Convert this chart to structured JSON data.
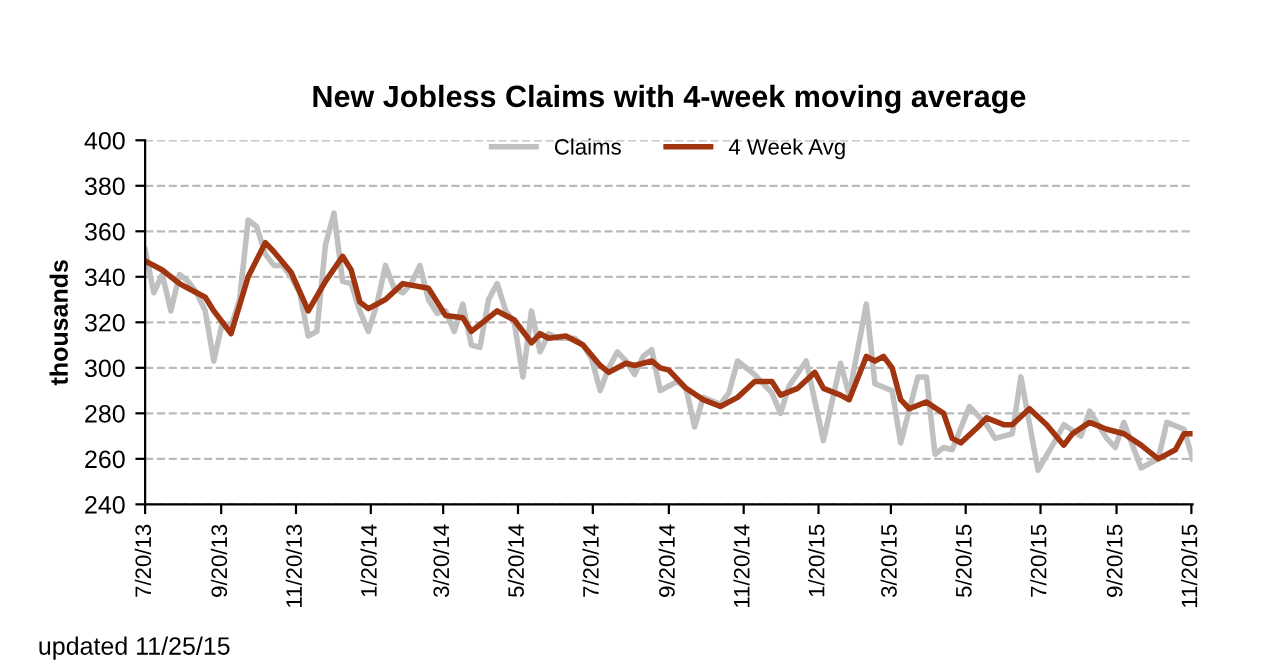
{
  "chart_data": {
    "type": "line",
    "title": "New Jobless Claims with 4-week moving average",
    "ylabel": "thousands",
    "annotations": [
      "updated 11/25/15"
    ],
    "series": [
      {
        "name": "Claims",
        "color": "#c0c0c0",
        "x": [
          "2013-07-20",
          "2013-07-27",
          "2013-08-03",
          "2013-08-10",
          "2013-08-17",
          "2013-08-24",
          "2013-08-31",
          "2013-09-07",
          "2013-09-14",
          "2013-09-21",
          "2013-09-28",
          "2013-10-05",
          "2013-10-12",
          "2013-10-19",
          "2013-10-26",
          "2013-11-02",
          "2013-11-09",
          "2013-11-16",
          "2013-11-23",
          "2013-11-30",
          "2013-12-07",
          "2013-12-14",
          "2013-12-21",
          "2013-12-28",
          "2014-01-04",
          "2014-01-11",
          "2014-01-18",
          "2014-01-25",
          "2014-02-01",
          "2014-02-08",
          "2014-02-15",
          "2014-02-22",
          "2014-03-01",
          "2014-03-08",
          "2014-03-15",
          "2014-03-22",
          "2014-03-29",
          "2014-04-05",
          "2014-04-12",
          "2014-04-19",
          "2014-04-26",
          "2014-05-03",
          "2014-05-10",
          "2014-05-17",
          "2014-05-24",
          "2014-05-31",
          "2014-06-07",
          "2014-06-14",
          "2014-06-21",
          "2014-06-28",
          "2014-07-05",
          "2014-07-12",
          "2014-07-19",
          "2014-07-26",
          "2014-08-02",
          "2014-08-09",
          "2014-08-16",
          "2014-08-23",
          "2014-08-30",
          "2014-09-06",
          "2014-09-13",
          "2014-09-27",
          "2014-10-04",
          "2014-10-11",
          "2014-10-18",
          "2014-11-01",
          "2014-11-08",
          "2014-11-15",
          "2014-11-29",
          "2014-12-13",
          "2014-12-20",
          "2014-12-27",
          "2015-01-10",
          "2015-01-24",
          "2015-02-07",
          "2015-02-14",
          "2015-02-28",
          "2015-03-07",
          "2015-03-21",
          "2015-03-28",
          "2015-04-11",
          "2015-04-18",
          "2015-04-25",
          "2015-05-02",
          "2015-05-09",
          "2015-05-23",
          "2015-06-06",
          "2015-06-13",
          "2015-06-27",
          "2015-07-04",
          "2015-07-18",
          "2015-08-01",
          "2015-08-08",
          "2015-08-22",
          "2015-08-29",
          "2015-09-12",
          "2015-09-19",
          "2015-09-26",
          "2015-10-10",
          "2015-10-24",
          "2015-10-31",
          "2015-11-14",
          "2015-11-21"
        ],
        "values": [
          352,
          333,
          341,
          325,
          341,
          338,
          333,
          325,
          303,
          320,
          318,
          330,
          365,
          362,
          350,
          345,
          345,
          340,
          333,
          314,
          316,
          354,
          368,
          338,
          337,
          325,
          316,
          328,
          345,
          335,
          333,
          337,
          345,
          330,
          324,
          325,
          316,
          328,
          310,
          309,
          330,
          337,
          325,
          320,
          296,
          325,
          307,
          315,
          313,
          313,
          313,
          310,
          304,
          290,
          300,
          307,
          303,
          297,
          305,
          308,
          290,
          294,
          291,
          274,
          287,
          284,
          289,
          303,
          297,
          289,
          280,
          292,
          303,
          268,
          302,
          288,
          328,
          293,
          290,
          267,
          296,
          296,
          262,
          265,
          264,
          283,
          275,
          269,
          271,
          296,
          255,
          268,
          275,
          270,
          281,
          269,
          265,
          276,
          256,
          260,
          276,
          273,
          260
        ]
      },
      {
        "name": "4 Week Avg",
        "color": "#a0350f",
        "x": [
          "2013-07-20",
          "2013-08-03",
          "2013-08-17",
          "2013-08-24",
          "2013-09-07",
          "2013-09-14",
          "2013-09-28",
          "2013-10-12",
          "2013-10-26",
          "2013-11-02",
          "2013-11-16",
          "2013-11-30",
          "2013-12-14",
          "2013-12-28",
          "2014-01-04",
          "2014-01-11",
          "2014-01-18",
          "2014-02-01",
          "2014-02-15",
          "2014-03-08",
          "2014-03-22",
          "2014-04-05",
          "2014-04-12",
          "2014-05-03",
          "2014-05-17",
          "2014-05-31",
          "2014-06-07",
          "2014-06-14",
          "2014-06-28",
          "2014-07-12",
          "2014-07-26",
          "2014-08-02",
          "2014-08-16",
          "2014-08-23",
          "2014-09-06",
          "2014-09-13",
          "2014-09-20",
          "2014-10-04",
          "2014-10-18",
          "2014-11-01",
          "2014-11-15",
          "2014-11-29",
          "2014-12-13",
          "2014-12-20",
          "2015-01-03",
          "2015-01-17",
          "2015-01-24",
          "2015-02-07",
          "2015-02-14",
          "2015-02-28",
          "2015-03-07",
          "2015-03-14",
          "2015-03-21",
          "2015-03-28",
          "2015-04-04",
          "2015-04-18",
          "2015-05-02",
          "2015-05-09",
          "2015-05-16",
          "2015-05-30",
          "2015-06-06",
          "2015-06-20",
          "2015-06-27",
          "2015-07-11",
          "2015-07-25",
          "2015-08-08",
          "2015-08-15",
          "2015-08-29",
          "2015-09-12",
          "2015-09-26",
          "2015-10-10",
          "2015-10-24",
          "2015-11-07",
          "2015-11-14",
          "2015-11-21"
        ],
        "values": [
          347,
          343,
          337,
          335,
          331,
          325,
          315,
          340,
          355,
          351,
          342,
          325,
          338,
          349,
          343,
          329,
          326,
          330,
          337,
          335,
          323,
          322,
          316,
          325,
          321,
          311,
          315,
          313,
          314,
          310,
          301,
          298,
          302,
          301,
          303,
          300,
          299,
          291,
          286,
          283,
          287,
          294,
          294,
          288,
          291,
          298,
          291,
          288,
          286,
          305,
          303,
          305,
          300,
          286,
          282,
          285,
          280,
          269,
          267,
          274,
          278,
          275,
          275,
          282,
          275,
          266,
          271,
          276,
          273,
          271,
          266,
          260,
          264,
          271,
          271
        ]
      }
    ],
    "xlim": [
      "2013-07-20",
      "2015-11-21"
    ],
    "xticks": [
      {
        "value": "2013-07-20",
        "label": "7/20/13"
      },
      {
        "value": "2013-09-20",
        "label": "9/20/13"
      },
      {
        "value": "2013-11-20",
        "label": "11/20/13"
      },
      {
        "value": "2014-01-20",
        "label": "1/20/14"
      },
      {
        "value": "2014-03-20",
        "label": "3/20/14"
      },
      {
        "value": "2014-05-20",
        "label": "5/20/14"
      },
      {
        "value": "2014-07-20",
        "label": "7/20/14"
      },
      {
        "value": "2014-09-20",
        "label": "9/20/14"
      },
      {
        "value": "2014-11-20",
        "label": "11/20/14"
      },
      {
        "value": "2015-01-20",
        "label": "1/20/15"
      },
      {
        "value": "2015-03-20",
        "label": "3/20/15"
      },
      {
        "value": "2015-05-20",
        "label": "5/20/15"
      },
      {
        "value": "2015-07-20",
        "label": "7/20/15"
      },
      {
        "value": "2015-09-20",
        "label": "9/20/15"
      },
      {
        "value": "2015-11-20",
        "label": "11/20/15"
      }
    ],
    "ylim": [
      240,
      400
    ],
    "yticks": [
      240,
      260,
      280,
      300,
      320,
      340,
      360,
      380,
      400
    ],
    "grid": "y",
    "legend": "top",
    "marker": "none",
    "line_style": "solid"
  }
}
